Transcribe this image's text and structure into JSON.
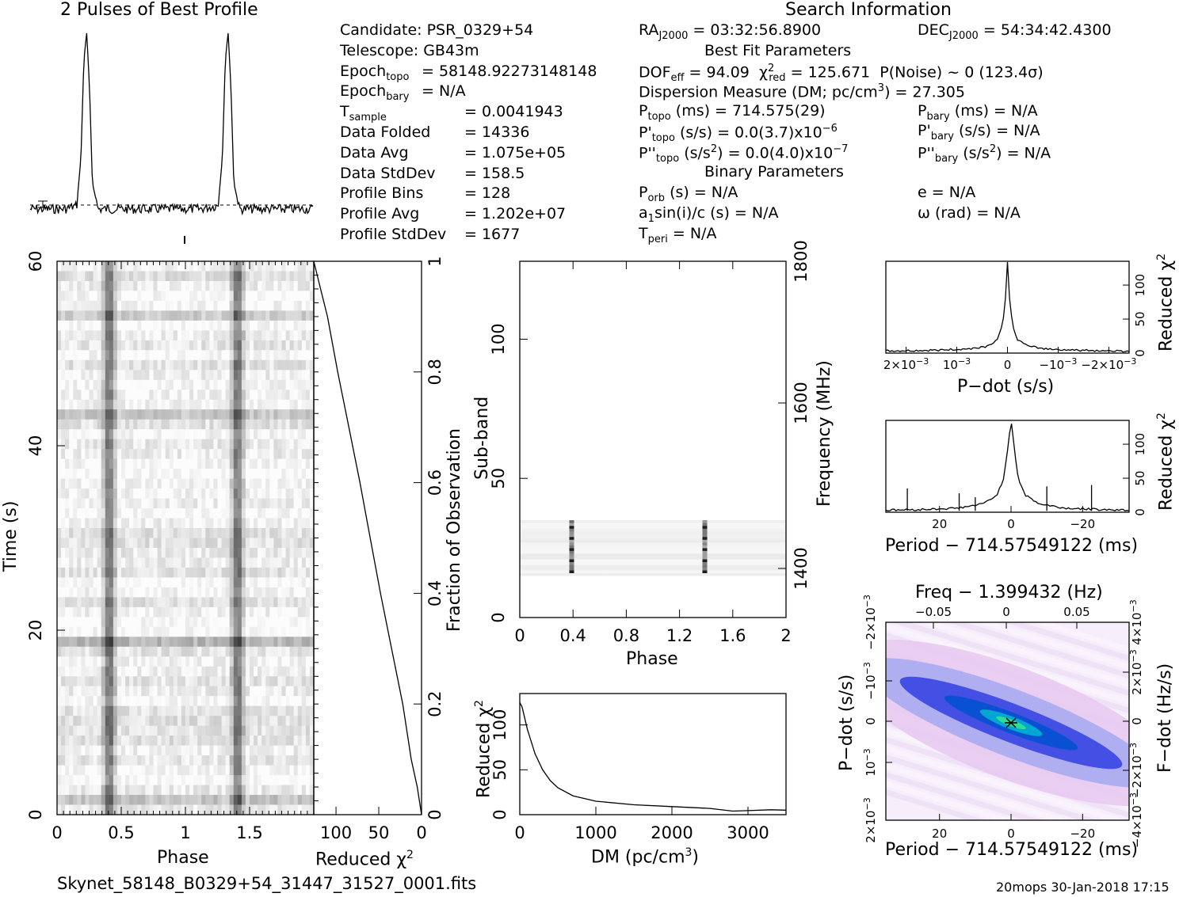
{
  "header": {
    "profile_title": "2 Pulses of Best Profile",
    "search_title": "Search Information",
    "best_fit_title": "Best Fit Parameters",
    "binary_title": "Binary Parameters"
  },
  "info": {
    "left": [
      {
        "label": "Candidate:  PSR_0329+54",
        "value": ""
      },
      {
        "label": "Telescope:  GB43m",
        "value": ""
      },
      {
        "label": "Epoch",
        "sub": "topo",
        "value": "= 58148.92273148148"
      },
      {
        "label": "Epoch",
        "sub": "bary",
        "value": "= N/A"
      },
      {
        "label": "T",
        "sub": "sample",
        "value": "=   0.0041943"
      },
      {
        "label": "Data Folded",
        "value": "=   14336"
      },
      {
        "label": "Data Avg",
        "value": "=   1.075e+05"
      },
      {
        "label": "Data StdDev",
        "value": "=   158.5"
      },
      {
        "label": "Profile Bins",
        "value": "=   128"
      },
      {
        "label": "Profile Avg",
        "value": "=   1.202e+07"
      },
      {
        "label": "Profile StdDev",
        "value": "=   1677"
      }
    ],
    "ra": "RA",
    "ra_sub": "J2000",
    "ra_value": "= 03:32:56.8900",
    "dec": "DEC",
    "dec_sub": "J2000",
    "dec_value": "= 54:34:42.4300",
    "dof": "DOF",
    "dof_sub": "eff",
    "dof_value": "= 94.09",
    "chi_red": "χ",
    "chi_sup": "2",
    "chi_sub": "red",
    "chi_value": "= 125.671",
    "pnoise": "P(Noise) ~ 0   (123.4σ)",
    "dm_line": "Dispersion Measure (DM; pc/cm",
    "dm_sup": "3",
    "dm_value": ") = 27.305",
    "ptopo": "P",
    "ptopo_sub": "topo",
    "ptopo_value": "(ms) =  714.575(29)",
    "pbary": "P",
    "pbary_sub": "bary",
    "pbary_value": "(ms) = N/A",
    "pdtopo": "P'",
    "pdtopo_sub": "topo",
    "pdtopo_value": "(s/s) = 0.0(3.7)x10",
    "pdtopo_exp": "−6",
    "pdbary": "P'",
    "pdbary_sub": "bary",
    "pdbary_value": "(s/s) = N/A",
    "pddtopo": "P''",
    "pddtopo_sub": "topo",
    "pddtopo_value": "(s/s",
    "pddtopo_sup": "2",
    "pddtopo_value2": ") = 0.0(4.0)x10",
    "pddtopo_exp": "−7",
    "pddbary": "P''",
    "pddbary_sub": "bary",
    "pddbary_value": "(s/s",
    "pddbary_sup": "2",
    "pddbary_value2": ") = N/A",
    "porb": "P",
    "porb_sub": "orb",
    "porb_value": "(s) = N/A",
    "ecc": "e = N/A",
    "asini": "a",
    "asini_sub": "1",
    "asini_value": "sin(i)/c (s) = N/A",
    "omega": "ω (rad) = N/A",
    "tperi": "T",
    "tperi_sub": "peri",
    "tperi_value": "= N/A"
  },
  "footer": {
    "filename": "Skynet_58148_B0329+54_31447_31527_0001.fits",
    "stamp": "20mops 30-Jan-2018 17:15"
  },
  "chart_data": [
    {
      "type": "line",
      "id": "profile",
      "title": "2 Pulses of Best Profile",
      "x": [
        0,
        0.25,
        0.33,
        0.36,
        0.38,
        0.4,
        0.42,
        0.44,
        0.48,
        0.6,
        0.8,
        1.0,
        1.2,
        1.33,
        1.36,
        1.38,
        1.4,
        1.42,
        1.44,
        1.48,
        1.6,
        1.8,
        2.0
      ],
      "y": [
        0,
        0,
        0.02,
        0.3,
        0.85,
        1.0,
        0.7,
        0.15,
        0.0,
        0.0,
        0.0,
        0.0,
        0.0,
        0.02,
        0.3,
        0.85,
        1.0,
        0.7,
        0.15,
        0.0,
        0.0,
        0.0,
        0.0
      ],
      "xlim": [
        0,
        2
      ]
    },
    {
      "type": "heatmap",
      "id": "time-phase",
      "xlabel": "Phase",
      "ylabel": "Time (s)",
      "x_ticks": [
        "0",
        "0.5",
        "1",
        "1.5"
      ],
      "y_ticks": [
        "0",
        "20",
        "40",
        "60"
      ],
      "xlim": [
        0,
        2
      ],
      "ylim": [
        0,
        60
      ],
      "pulse_phases": [
        0.4,
        1.4
      ]
    },
    {
      "type": "line",
      "id": "time-chi2",
      "xlabel": "Reduced χ",
      "xlabel_sup": "2",
      "ylabel": "Fraction of Observation",
      "x_ticks": [
        "100",
        "50",
        "0"
      ],
      "y_ticks": [
        "0",
        "0.2",
        "0.4",
        "0.6",
        "0.8",
        "1"
      ],
      "fraction": [
        0,
        0.05,
        0.1,
        0.2,
        0.3,
        0.4,
        0.5,
        0.6,
        0.7,
        0.8,
        0.9,
        0.95,
        1.0
      ],
      "chi2": [
        0,
        5,
        12,
        22,
        35,
        48,
        60,
        72,
        85,
        98,
        110,
        118,
        126
      ],
      "xlim": [
        126,
        0
      ],
      "ylim": [
        0,
        1
      ]
    },
    {
      "type": "heatmap",
      "id": "subband-phase",
      "xlabel": "Phase",
      "ylabel": "Sub-band",
      "ylabel_right": "Frequency (MHz)",
      "x_ticks": [
        "0",
        "0.4",
        "0.8",
        "1.2",
        "1.6",
        "2"
      ],
      "y_ticks": [
        "0",
        "50",
        "100"
      ],
      "y_ticks_right": [
        "1400",
        "1600",
        "1800"
      ],
      "xlim": [
        0,
        2
      ],
      "ylim": [
        0,
        128
      ],
      "band_range": [
        15,
        35
      ],
      "pulse_phases": [
        0.39,
        1.39
      ]
    },
    {
      "type": "line",
      "id": "dm-chi2",
      "xlabel": "DM (pc/cm",
      "xlabel_sup": "3",
      "xlabel_end": ")",
      "ylabel": "Reduced χ",
      "ylabel_sup": "2",
      "x_ticks": [
        "0",
        "1000",
        "2000",
        "3000"
      ],
      "y_ticks": [
        "0",
        "50",
        "100"
      ],
      "x": [
        0,
        30,
        100,
        200,
        300,
        400,
        500,
        700,
        1000,
        1500,
        2000,
        2500,
        2800,
        3000,
        3300,
        3500
      ],
      "y": [
        125,
        120,
        95,
        68,
        50,
        38,
        30,
        21,
        15,
        11,
        9,
        7,
        4,
        4.5,
        5.5,
        5
      ],
      "xlim": [
        0,
        3500
      ],
      "ylim": [
        0,
        135
      ]
    },
    {
      "type": "line",
      "id": "pdot-chi2",
      "xlabel": "P−dot (s/s)",
      "ylabel": "Reduced χ",
      "ylabel_sup": "2",
      "x_ticks": [
        "2×10",
        "10",
        "0",
        "−10",
        "−2×10"
      ],
      "x_tick_exp": "−3",
      "y_ticks": [
        "0",
        "50",
        "100"
      ],
      "x": [
        0.0024,
        0.0015,
        0.0008,
        0.0004,
        0.0002,
        0.0001,
        4e-05,
        0,
        -4e-05,
        -0.0001,
        -0.0002,
        -0.0004,
        -0.0008,
        -0.0015,
        -0.0024
      ],
      "y": [
        3,
        4,
        6,
        10,
        20,
        40,
        80,
        135,
        80,
        40,
        20,
        10,
        6,
        4,
        3
      ],
      "xlim": [
        0.0024,
        -0.0024
      ],
      "ylim": [
        0,
        135
      ]
    },
    {
      "type": "line",
      "id": "period-chi2",
      "xlabel": "Period − 714.57549122 (ms)",
      "ylabel": "Reduced χ",
      "ylabel_sup": "2",
      "x_ticks": [
        "20",
        "0",
        "−20"
      ],
      "y_ticks": [
        "0",
        "50",
        "100"
      ],
      "x": [
        35,
        25,
        15,
        8,
        4,
        2,
        1,
        0,
        -1,
        -2,
        -4,
        -8,
        -15,
        -25,
        -33
      ],
      "y": [
        3,
        4,
        6,
        12,
        25,
        50,
        90,
        138,
        90,
        50,
        25,
        12,
        6,
        4,
        3
      ],
      "spikes": [
        {
          "x": 29,
          "y": 35
        },
        {
          "x": 14.5,
          "y": 28
        },
        {
          "x": 10,
          "y": 22
        },
        {
          "x": -10,
          "y": 38
        },
        {
          "x": -22.5,
          "y": 40
        }
      ],
      "xlim": [
        35,
        -33
      ],
      "ylim": [
        0,
        135
      ]
    },
    {
      "type": "heatmap",
      "id": "period-pdot",
      "title": "Freq − 1.399432 (Hz)",
      "xlabel": "Period − 714.57549122 (ms)",
      "ylabel": "P−dot (s/s)",
      "ylabel_right": "F−dot (Hz/s)",
      "x_ticks": [
        "20",
        "0",
        "−20"
      ],
      "top_ticks": [
        "−0.05",
        "0",
        "0.05"
      ],
      "y_ticks": [
        "2×10",
        "10",
        "0",
        "−10",
        "−2×10"
      ],
      "y_tick_exp": "−3",
      "right_ticks": [
        "−4×10",
        "−2×10",
        "0",
        "2×10",
        "4×10"
      ],
      "right_tick_exp": "−3",
      "xlim": [
        35,
        -33
      ],
      "ylim": [
        0.0024,
        -0.0024
      ],
      "colors": [
        "#ffffff",
        "#e8c8f0",
        "#a4a8f0",
        "#2030e0",
        "#0050d0",
        "#00b0d0",
        "#30e090"
      ]
    }
  ]
}
